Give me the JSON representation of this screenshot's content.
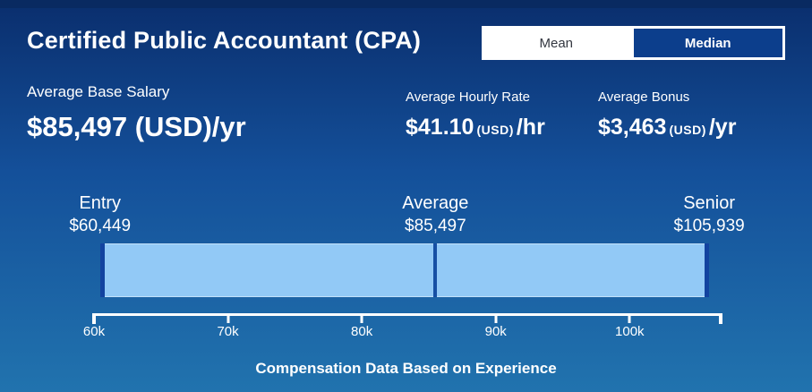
{
  "header": {
    "title": "Certified Public Accountant (CPA)",
    "toggle": {
      "options": [
        "Mean",
        "Median"
      ],
      "active": "Mean"
    }
  },
  "stats": {
    "base_salary": {
      "label": "Average Base Salary",
      "value": "$85,497",
      "currency": "(USD)",
      "period": "/yr"
    },
    "hourly_rate": {
      "label": "Average Hourly Rate",
      "value": "$41.10",
      "currency": "(USD)",
      "period": "/hr"
    },
    "bonus": {
      "label": "Average Bonus",
      "value": "$3,463",
      "currency": "(USD)",
      "period": "/yr"
    }
  },
  "chart_data": {
    "type": "range-bar",
    "title": "Compensation Data Based on Experience",
    "points": [
      {
        "label": "Entry",
        "value": 60449,
        "display": "$60,449"
      },
      {
        "label": "Average",
        "value": 85497,
        "display": "$85,497"
      },
      {
        "label": "Senior",
        "value": 105939,
        "display": "$105,939"
      }
    ],
    "bar": {
      "from": 60449,
      "to": 105939,
      "divider_at": 85497
    },
    "axis": {
      "min": 60000,
      "max": 106800,
      "ticks": [
        {
          "label": "60k",
          "value": 60000
        },
        {
          "label": "70k",
          "value": 70000
        },
        {
          "label": "80k",
          "value": 80000
        },
        {
          "label": "90k",
          "value": 90000
        },
        {
          "label": "100k",
          "value": 100000
        }
      ]
    },
    "colors": {
      "bar_fill": "#92C9F6",
      "bar_edge": "#1243A0",
      "divider": "#164FA4",
      "axis": "#FFFFFF"
    }
  },
  "theme": {
    "background_top": "#0A2E6D",
    "background_bottom": "#2173AE",
    "toggle_active_bg": "#FFFFFF",
    "toggle_inactive_bg": "#0C3E8C",
    "text": "#FFFFFF"
  }
}
